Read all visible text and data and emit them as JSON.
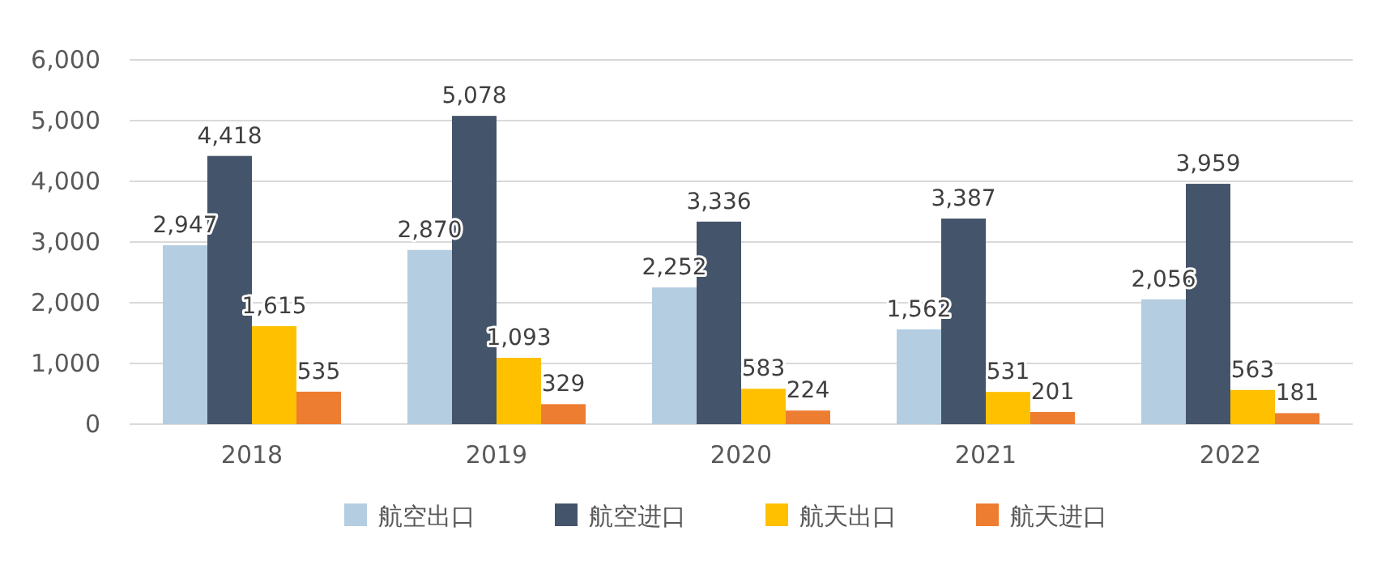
{
  "chart_data": {
    "type": "bar",
    "categories": [
      "2018",
      "2019",
      "2020",
      "2021",
      "2022"
    ],
    "series": [
      {
        "name": "航空出口",
        "color": "#b4cde1",
        "values": [
          2947,
          2870,
          2252,
          1562,
          2056
        ],
        "value_labels": [
          "2,947",
          "2,870",
          "2,252",
          "1,562",
          "2,056"
        ]
      },
      {
        "name": "航空进口",
        "color": "#44546a",
        "values": [
          4418,
          5078,
          3336,
          3387,
          3959
        ],
        "value_labels": [
          "4,418",
          "5,078",
          "3,336",
          "3,387",
          "3,959"
        ]
      },
      {
        "name": "航天出口",
        "color": "#ffc000",
        "values": [
          1615,
          1093,
          583,
          531,
          563
        ],
        "value_labels": [
          "1,615",
          "1,093",
          "583",
          "531",
          "563"
        ]
      },
      {
        "name": "航天进口",
        "color": "#ed7d31",
        "values": [
          535,
          329,
          224,
          201,
          181
        ],
        "value_labels": [
          "535",
          "329",
          "224",
          "201",
          "181"
        ]
      }
    ],
    "ylim": [
      0,
      6000
    ],
    "yticks": [
      {
        "value": 0,
        "label": "0"
      },
      {
        "value": 1000,
        "label": "1,000"
      },
      {
        "value": 2000,
        "label": "2,000"
      },
      {
        "value": 3000,
        "label": "3,000"
      },
      {
        "value": 4000,
        "label": "4,000"
      },
      {
        "value": 5000,
        "label": "5,000"
      },
      {
        "value": 6000,
        "label": "6,000"
      }
    ],
    "grid": "y",
    "legend": "bottom"
  }
}
